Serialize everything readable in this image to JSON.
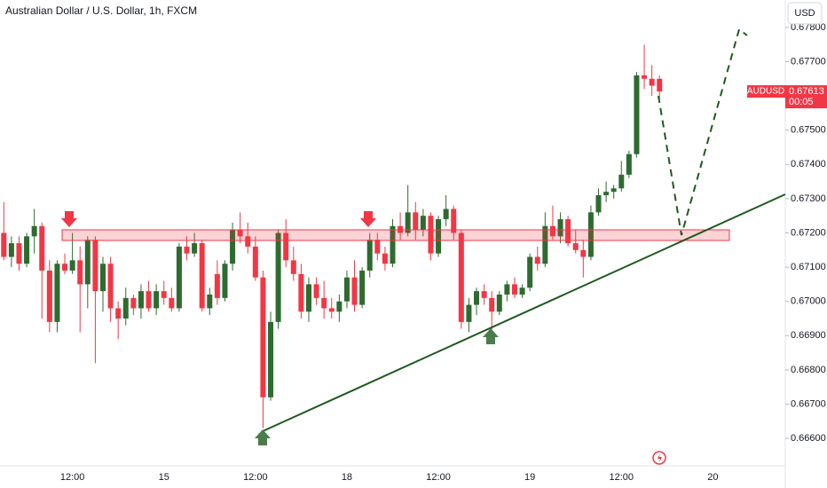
{
  "chart_data": {
    "type": "candlestick",
    "title": "Australian Dollar / U.S. Dollar, 1h, FXCM",
    "currency": "USD",
    "symbol": "AUDUSD",
    "last_price_label": "0.67613",
    "countdown": "00:05",
    "up_color": "#2e6b30",
    "down_color": "#f23645",
    "categories": [
      null,
      null,
      null,
      null,
      null,
      null,
      null,
      null,
      null,
      "12:00",
      null,
      null,
      null,
      null,
      null,
      null,
      null,
      null,
      null,
      null,
      null,
      "15",
      null,
      null,
      null,
      null,
      null,
      null,
      null,
      null,
      null,
      null,
      null,
      "12:00",
      null,
      null,
      null,
      null,
      null,
      null,
      null,
      null,
      null,
      null,
      null,
      "18",
      null,
      null,
      null,
      null,
      null,
      null,
      null,
      null,
      null,
      null,
      null,
      "12:00",
      null,
      null,
      null,
      null,
      null,
      null,
      null,
      null,
      null,
      null,
      null,
      "19",
      null,
      null,
      null,
      null,
      null,
      null,
      null,
      null,
      null,
      null,
      null,
      "12:00",
      null,
      null,
      null,
      null,
      null,
      null,
      null,
      null,
      null,
      null,
      null,
      "20",
      null,
      null,
      null,
      null,
      null,
      null,
      null,
      null,
      null
    ],
    "open": [
      0.672,
      0.6713,
      0.6717,
      0.6711,
      0.6719,
      0.6722,
      0.6709,
      0.6694,
      0.6711,
      0.6709,
      0.6712,
      0.6705,
      0.6718,
      0.6703,
      0.6711,
      0.6698,
      0.6695,
      0.6701,
      0.6698,
      0.6703,
      0.6698,
      0.6703,
      0.6701,
      0.6698,
      0.6716,
      0.6714,
      0.6717,
      0.6698,
      0.6708,
      0.6701,
      0.6711,
      0.6721,
      0.6719,
      0.6716,
      0.6707,
      0.6672,
      0.6694,
      0.672,
      0.6712,
      0.6708,
      0.6697,
      0.6705,
      0.6701,
      0.6698,
      0.6697,
      0.67,
      0.6707,
      0.6699,
      0.6709,
      0.6718,
      0.6714,
      0.6711,
      0.6722,
      0.672,
      0.6726,
      0.6721,
      0.6725,
      0.6714,
      0.6724,
      0.6727,
      0.672,
      0.6694,
      0.6699,
      0.6703,
      0.6701,
      0.6697,
      0.6702,
      0.6705,
      0.6702,
      0.6704,
      0.6713,
      0.6711,
      0.6722,
      0.6719,
      0.6724,
      0.6717,
      0.6715,
      0.6713,
      0.6726,
      0.6731,
      0.6732,
      0.6733,
      0.6737,
      0.6743,
      0.6766,
      0.6765,
      0.6765,
      null,
      null,
      null,
      null,
      null,
      null,
      null,
      null,
      null,
      null,
      null,
      null,
      null,
      null,
      null,
      null
    ],
    "high": [
      0.6729,
      0.6719,
      0.6719,
      0.672,
      0.6727,
      0.6723,
      0.6712,
      0.6712,
      0.6714,
      0.672,
      0.6716,
      0.6719,
      0.6719,
      0.6713,
      0.6713,
      0.67,
      0.6704,
      0.6702,
      0.6705,
      0.6706,
      0.6705,
      0.6706,
      0.6704,
      0.6717,
      0.6719,
      0.672,
      0.6718,
      0.6704,
      0.6712,
      0.6712,
      0.6723,
      0.6726,
      0.6723,
      0.6719,
      0.6709,
      0.6697,
      0.6721,
      0.6724,
      0.6716,
      0.6711,
      0.6707,
      0.6707,
      0.6706,
      0.6701,
      0.6702,
      0.6709,
      0.6712,
      0.671,
      0.672,
      0.672,
      0.6716,
      0.6724,
      0.6726,
      0.6734,
      0.6729,
      0.6727,
      0.6726,
      0.6725,
      0.6731,
      0.6728,
      0.6721,
      0.6701,
      0.6704,
      0.6705,
      0.6703,
      0.6703,
      0.6706,
      0.6707,
      0.6705,
      0.6714,
      0.6716,
      0.6726,
      0.6728,
      0.6726,
      0.6725,
      0.6721,
      0.6718,
      0.6728,
      0.6733,
      0.6735,
      0.6734,
      0.6741,
      0.6744,
      0.6767,
      0.6775,
      0.6769,
      0.6766,
      null,
      null,
      null,
      null,
      null,
      null,
      null,
      null,
      null,
      null,
      null,
      null,
      null,
      null,
      null,
      null
    ],
    "low": [
      0.6712,
      0.671,
      0.6709,
      0.671,
      0.6714,
      0.6695,
      0.6691,
      0.6691,
      0.6708,
      0.6708,
      0.6691,
      0.6698,
      0.6682,
      0.6697,
      0.6694,
      0.6689,
      0.6693,
      0.6696,
      0.6695,
      0.6697,
      0.6696,
      0.6699,
      0.6697,
      0.6697,
      0.6712,
      0.6713,
      0.6697,
      0.6696,
      0.6699,
      0.67,
      0.6709,
      0.6717,
      0.6714,
      0.6706,
      0.6663,
      0.6671,
      0.6692,
      0.671,
      0.6706,
      0.6695,
      0.6694,
      0.6699,
      0.6695,
      0.6695,
      0.6694,
      0.6698,
      0.6697,
      0.6698,
      0.6707,
      0.6712,
      0.6709,
      0.671,
      0.6718,
      0.6719,
      0.6718,
      0.6719,
      0.6712,
      0.6713,
      0.6722,
      0.6718,
      0.6692,
      0.6691,
      0.6696,
      0.6699,
      0.6691,
      0.6696,
      0.67,
      0.6701,
      0.6701,
      0.6703,
      0.6709,
      0.671,
      0.6718,
      0.6717,
      0.6716,
      0.6714,
      0.6707,
      0.6712,
      0.6725,
      0.6729,
      0.673,
      0.6732,
      0.6736,
      0.6742,
      0.6762,
      0.676,
      0.6759,
      null,
      null,
      null,
      null,
      null,
      null,
      null,
      null,
      null,
      null,
      null,
      null,
      null,
      null,
      null,
      null
    ],
    "close": [
      0.6713,
      0.6717,
      0.6711,
      0.6719,
      0.6722,
      0.6709,
      0.6694,
      0.6711,
      0.6709,
      0.6712,
      0.6705,
      0.6718,
      0.6703,
      0.6711,
      0.6698,
      0.6695,
      0.6701,
      0.6698,
      0.6703,
      0.6698,
      0.6703,
      0.6701,
      0.6698,
      0.6716,
      0.6714,
      0.6717,
      0.6698,
      0.6702,
      0.6701,
      0.6711,
      0.6721,
      0.6719,
      0.6716,
      0.6707,
      0.6672,
      0.6694,
      0.672,
      0.6712,
      0.6708,
      0.6697,
      0.6705,
      0.6701,
      0.6698,
      0.6697,
      0.67,
      0.6707,
      0.6699,
      0.6709,
      0.6718,
      0.6714,
      0.6711,
      0.6722,
      0.672,
      0.6726,
      0.6721,
      0.6725,
      0.6714,
      0.6724,
      0.6727,
      0.672,
      0.6694,
      0.6699,
      0.6703,
      0.6701,
      0.6697,
      0.6702,
      0.6705,
      0.6702,
      0.6704,
      0.6713,
      0.6711,
      0.6722,
      0.6719,
      0.6724,
      0.6717,
      0.6715,
      0.6713,
      0.6726,
      0.6731,
      0.6732,
      0.6733,
      0.6737,
      0.6743,
      0.6766,
      0.6765,
      0.6763,
      0.67613,
      null,
      null,
      null,
      null,
      null,
      null,
      null,
      null,
      null,
      null,
      null,
      null,
      null,
      null,
      null,
      null
    ],
    "ylim": [
      0.6652,
      0.6788
    ],
    "yticks": [
      {
        "value": 0.666,
        "label": "0.66600"
      },
      {
        "value": 0.667,
        "label": "0.66700"
      },
      {
        "value": 0.668,
        "label": "0.66800"
      },
      {
        "value": 0.669,
        "label": "0.66900"
      },
      {
        "value": 0.67,
        "label": "0.67000"
      },
      {
        "value": 0.671,
        "label": "0.67100"
      },
      {
        "value": 0.672,
        "label": "0.67200"
      },
      {
        "value": 0.673,
        "label": "0.67300"
      },
      {
        "value": 0.674,
        "label": "0.67400"
      },
      {
        "value": 0.675,
        "label": "0.67500"
      },
      {
        "value": 0.676,
        "label": "0.67600"
      },
      {
        "value": 0.677,
        "label": "0.67700"
      },
      {
        "value": 0.678,
        "label": "0.67800"
      }
    ],
    "grid": false
  }
}
